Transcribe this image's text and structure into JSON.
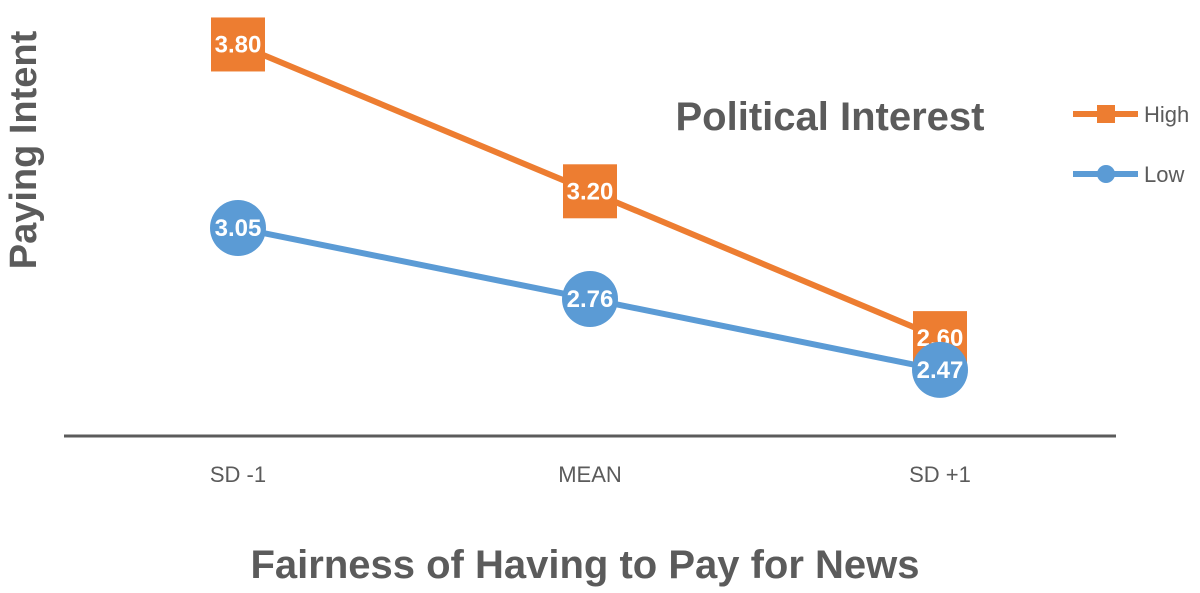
{
  "chart_data": {
    "type": "line",
    "xlabel": "Fairness of Having to Pay for News",
    "ylabel": "Paying Intent",
    "categories": [
      "SD -1",
      "MEAN",
      "SD +1"
    ],
    "legend_title": "Political Interest",
    "legend_position": "right",
    "grid": false,
    "ylim": [
      2.2,
      3.9
    ],
    "series": [
      {
        "name": "High",
        "values": [
          3.8,
          3.2,
          2.6
        ],
        "labels": [
          "3.80",
          "3.20",
          "2.60"
        ],
        "color": "#ed7d31",
        "marker": "square"
      },
      {
        "name": "Low",
        "values": [
          3.05,
          2.76,
          2.47
        ],
        "labels": [
          "3.05",
          "2.76",
          "2.47"
        ],
        "color": "#5b9bd5",
        "marker": "circle"
      }
    ]
  }
}
